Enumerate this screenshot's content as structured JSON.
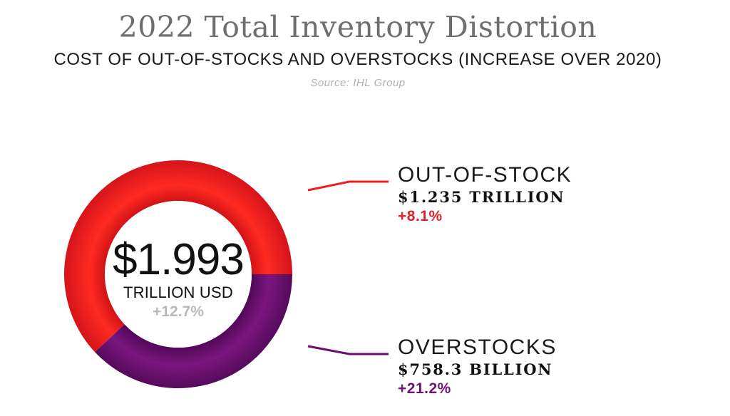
{
  "header": {
    "title": "2022 Total Inventory Distortion",
    "subtitle": "COST OF OUT-OF-STOCKS AND OVERSTOCKS (INCREASE OVER 2020)",
    "source": "Source: IHL Group"
  },
  "chart_data": {
    "type": "pie",
    "title": "2022 Total Inventory Distortion",
    "subtitle": "COST OF OUT-OF-STOCKS AND OVERSTOCKS (INCREASE OVER 2020)",
    "total": {
      "value": "$1.993",
      "unit": "TRILLION USD",
      "change": "+12.7%"
    },
    "slices": [
      {
        "name": "OUT-OF-STOCK",
        "amount_label": "$1.235 TRILLION",
        "value": 1235,
        "change": "+8.1%",
        "color": "#f01e1e"
      },
      {
        "name": "OVERSTOCKS",
        "amount_label": "$758.3 BILLION",
        "value": 758.3,
        "change": "+21.2%",
        "color": "#6a0d6e"
      }
    ],
    "colors": {
      "out_of_stock_change": "#e0202a",
      "overstocks_change": "#6e1475",
      "total_change": "#b8b8b8"
    }
  }
}
